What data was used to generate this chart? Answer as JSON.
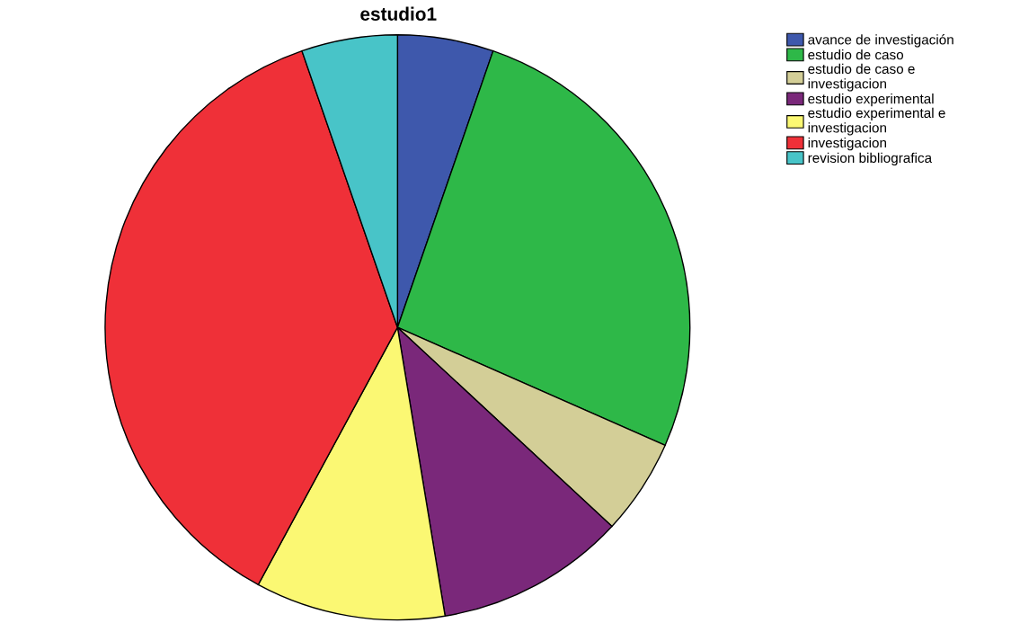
{
  "chart_data": {
    "type": "pie",
    "title": "estudio1",
    "categories": [
      "avance de investigación",
      "estudio de caso",
      "estudio de caso e investigacion",
      "estudio experimental",
      "estudio experimental e investigacion",
      "investigacion",
      "revision bibliografica"
    ],
    "values": [
      5.3,
      26.3,
      5.3,
      10.5,
      10.5,
      36.8,
      5.3
    ],
    "colors": [
      "#3e58ac",
      "#2eb848",
      "#d3ce97",
      "#7a287a",
      "#fbf873",
      "#ef3038",
      "#48c4c8"
    ],
    "legend": "top right"
  }
}
